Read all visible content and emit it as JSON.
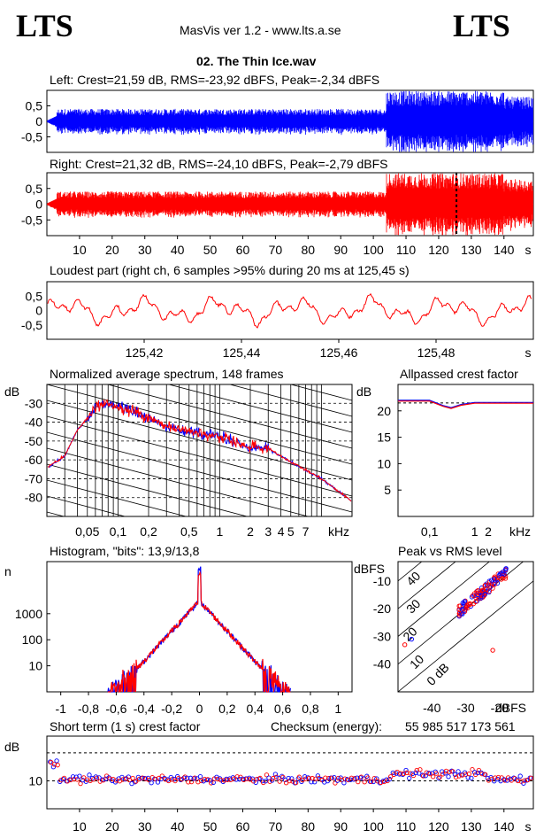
{
  "header": {
    "logo_left": "LTS",
    "logo_right": "LTS",
    "app_title": "MasVis ver 1.2 - www.lts.a.se",
    "file_title": "02. The Thin Ice.wav"
  },
  "colors": {
    "left": "#0000ff",
    "right": "#ff0000"
  },
  "chart_data": [
    {
      "id": "left-waveform",
      "type": "area",
      "title": "Left: Crest=21,59 dB, RMS=-23,92 dBFS, Peak=-2,34 dBFS",
      "ylim": [
        -1,
        1
      ],
      "yticks": [
        "0,5",
        "0",
        "-0,5"
      ],
      "xlim": [
        0,
        149
      ],
      "envelope": {
        "quiet_until_s": 3,
        "verse_amplitude": 0.35,
        "loud_from_s": 104,
        "loud_amplitude": 0.9
      }
    },
    {
      "id": "right-waveform",
      "type": "area",
      "title": "Right: Crest=21,32 dB, RMS=-24,10 dBFS, Peak=-2,79 dBFS",
      "ylim": [
        -1,
        1
      ],
      "yticks": [
        "0,5",
        "0",
        "-0,5"
      ],
      "xlim": [
        0,
        149
      ],
      "marker_s": 125.45,
      "xticks": [
        "10",
        "20",
        "30",
        "40",
        "50",
        "60",
        "70",
        "80",
        "90",
        "100",
        "110",
        "120",
        "130",
        "140"
      ],
      "x_unit": "s"
    },
    {
      "id": "loudest-part",
      "type": "line",
      "title": "Loudest part (right ch, 6 samples >95% during 20 ms at 125,45 s)",
      "ylim": [
        -1,
        1
      ],
      "yticks": [
        "0,5",
        "0",
        "-0,5"
      ],
      "xlim": [
        125.4,
        125.5
      ],
      "xticks": [
        "125,42",
        "125,44",
        "125,46",
        "125,48"
      ],
      "x_unit": "s"
    },
    {
      "id": "spectrum",
      "type": "line",
      "title": "Normalized average spectrum, 148 frames",
      "ylabel": "dB",
      "ylim": [
        -90,
        -20
      ],
      "yticks": [
        "-30",
        "-40",
        "-50",
        "-60",
        "-70",
        "-80"
      ],
      "x_scale": "log",
      "xlim": [
        0.02,
        20
      ],
      "xticks": [
        "0,05",
        "0,1",
        "0,2",
        "0,5",
        "1",
        "2",
        "3",
        "4",
        "5",
        "7"
      ],
      "x_unit": "kHz",
      "points_khz_db": [
        [
          0.02,
          -64
        ],
        [
          0.03,
          -58
        ],
        [
          0.04,
          -44
        ],
        [
          0.05,
          -38
        ],
        [
          0.06,
          -32
        ],
        [
          0.08,
          -30
        ],
        [
          0.1,
          -32
        ],
        [
          0.15,
          -35
        ],
        [
          0.2,
          -38
        ],
        [
          0.3,
          -42
        ],
        [
          0.5,
          -45
        ],
        [
          1,
          -48
        ],
        [
          2,
          -53
        ],
        [
          3,
          -54
        ],
        [
          5,
          -61
        ],
        [
          10,
          -70
        ],
        [
          20,
          -82
        ]
      ]
    },
    {
      "id": "allpassed-crest",
      "type": "line",
      "title": "Allpassed crest factor",
      "ylabel": "dB",
      "ylim": [
        0,
        25
      ],
      "yticks": [
        "20",
        "15",
        "10",
        "5"
      ],
      "x_scale": "log",
      "xlim": [
        0.02,
        20
      ],
      "xticks": [
        "0,1",
        "1",
        "2"
      ],
      "x_unit": "kHz",
      "reference_db": 21.5,
      "points_khz_db": [
        [
          0.02,
          22
        ],
        [
          0.1,
          22
        ],
        [
          0.2,
          21
        ],
        [
          0.3,
          20.6
        ],
        [
          0.5,
          21.2
        ],
        [
          1,
          21.6
        ],
        [
          5,
          21.6
        ],
        [
          20,
          21.6
        ]
      ]
    },
    {
      "id": "histogram",
      "type": "line",
      "title": "Histogram, \"bits\": 13,9/13,8",
      "ylabel": "n",
      "y_scale": "log",
      "yticks": [
        "1000",
        "100",
        "10"
      ],
      "xlim": [
        -1.1,
        1.1
      ],
      "xticks": [
        "-1",
        "-0,8",
        "-0,6",
        "-0,4",
        "-0,2",
        "0",
        "0,2",
        "0,4",
        "0,6",
        "0,8",
        "1"
      ],
      "peak_count": 50000
    },
    {
      "id": "peak-vs-rms",
      "type": "scatter",
      "title": "Peak vs RMS level",
      "ylabel": "dBFS",
      "xlabel": "dBFS",
      "ylim": [
        -50,
        -3
      ],
      "xlim": [
        -50,
        -10
      ],
      "yticks": [
        "-10",
        "-20",
        "-30",
        "-40"
      ],
      "xticks": [
        "-40",
        "-30",
        "-20"
      ],
      "crest_lines": [
        "40",
        "30",
        "20",
        "10",
        "0 dB"
      ]
    },
    {
      "id": "short-term-crest",
      "type": "scatter",
      "title": "Short term (1 s) crest factor",
      "checksum_label": "Checksum (energy):",
      "checksum_value": "55 985 517 173 561",
      "ylabel": "dB",
      "ytick": "10",
      "xlim": [
        0,
        149
      ],
      "xticks": [
        "10",
        "20",
        "30",
        "40",
        "50",
        "60",
        "70",
        "80",
        "90",
        "100",
        "110",
        "120",
        "130",
        "140"
      ],
      "x_unit": "s",
      "typical_db": 10.5
    }
  ]
}
